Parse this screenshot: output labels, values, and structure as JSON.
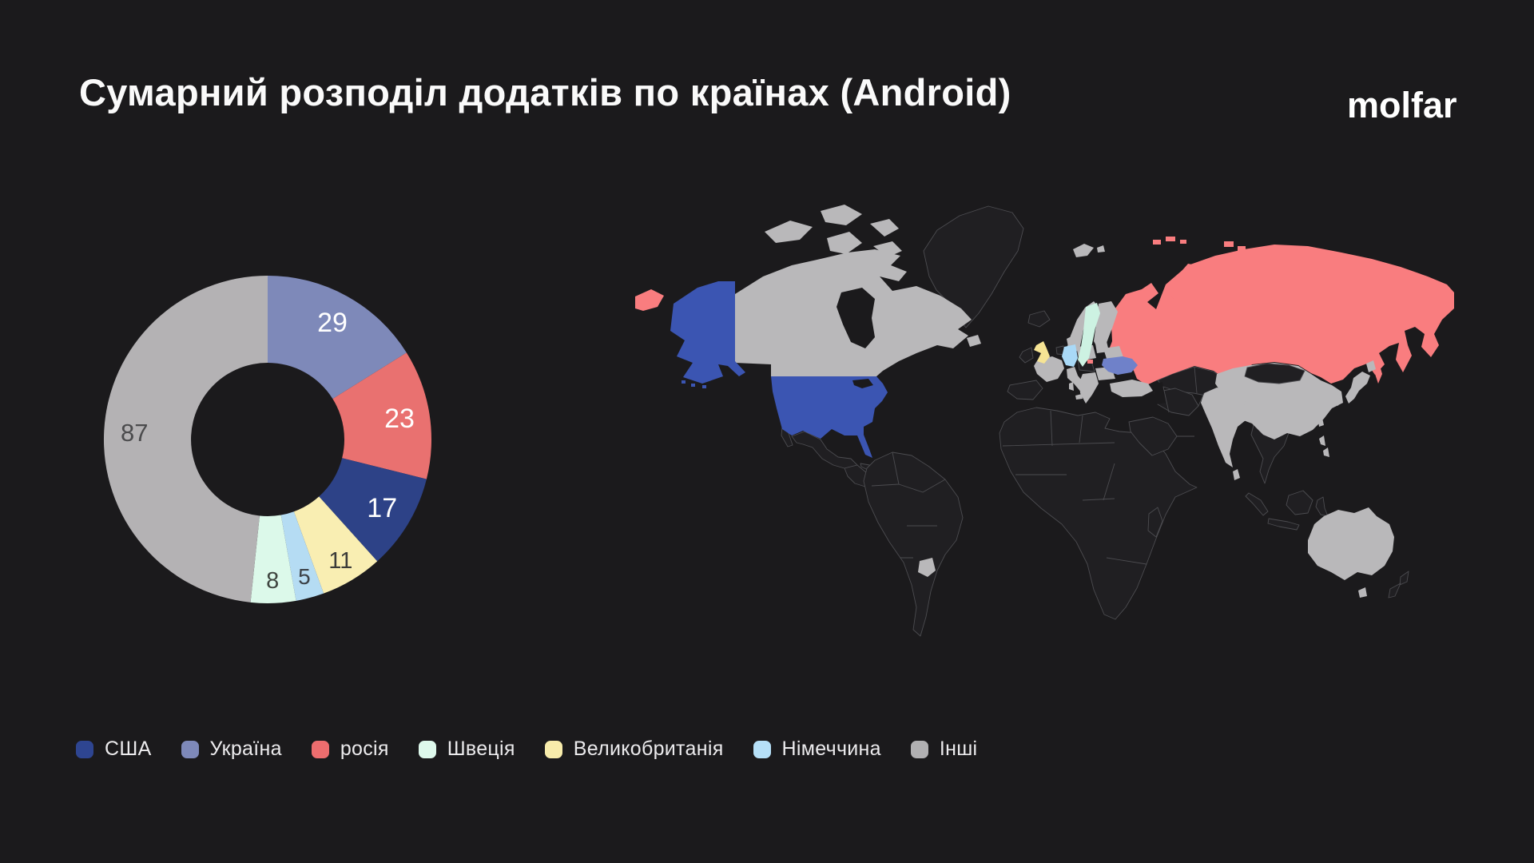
{
  "title": "Сумарний розподіл додатків по країнах (Android)",
  "logo_text": "molfar",
  "colors": {
    "background": "#1b1a1c",
    "title_text": "#fafafa"
  },
  "chart_data": {
    "type": "pie",
    "variant": "donut",
    "title": "Сумарний розподіл додатків по країнах (Android)",
    "total": 180,
    "direction": "clockwise",
    "start_angle_deg": 0,
    "inner_radius_ratio": 0.47,
    "categories": [
      "Україна",
      "росія",
      "США",
      "Великобританія",
      "Німеччина",
      "Швеція",
      "Інші"
    ],
    "values": [
      29,
      23,
      17,
      11,
      5,
      8,
      87
    ],
    "segments": [
      {
        "label": "Україна",
        "value": 29,
        "color": "#7e89b9",
        "label_color": "#ffffff"
      },
      {
        "label": "росія",
        "value": 23,
        "color": "#e97170",
        "label_color": "#ffffff"
      },
      {
        "label": "США",
        "value": 17,
        "color": "#2d4287",
        "label_color": "#ffffff"
      },
      {
        "label": "Великобританія",
        "value": 11,
        "color": "#f9eeb2",
        "label_color": "#3b3b39"
      },
      {
        "label": "Німеччина",
        "value": 5,
        "color": "#b5dcf3",
        "label_color": "#3c4248"
      },
      {
        "label": "Швеція",
        "value": 8,
        "color": "#dcf9ea",
        "label_color": "#3f4540"
      },
      {
        "label": "Інші",
        "value": 87,
        "color": "#b4b2b4",
        "label_color": "#4b4b4d"
      }
    ]
  },
  "legend": {
    "items": [
      {
        "label": "США",
        "color": "#2e4591"
      },
      {
        "label": "Україна",
        "color": "#7e89b9"
      },
      {
        "label": "росія",
        "color": "#ee6d6e"
      },
      {
        "label": "Швеція",
        "color": "#def9ec"
      },
      {
        "label": "Великобританія",
        "color": "#f8ecab"
      },
      {
        "label": "Німеччина",
        "color": "#b6e0f8"
      },
      {
        "label": "Інші",
        "color": "#b1b0b2"
      }
    ]
  },
  "map": {
    "type": "choropleth",
    "highlighted": [
      {
        "country": "США",
        "color": "#3b55b2"
      },
      {
        "country": "росія",
        "color": "#f97d7f"
      },
      {
        "country": "Україна",
        "color": "#6f81c9"
      },
      {
        "country": "Швеція",
        "color": "#cdf2e2"
      },
      {
        "country": "Великобританія",
        "color": "#f6e494"
      },
      {
        "country": "Німеччина",
        "color": "#a9d9f7"
      }
    ],
    "other_countries_color": "#b9b8ba",
    "no_data_fill": "#201f22",
    "fills": {
      "usa": "#3b55b2",
      "russia": "#f97d7f",
      "ukraine": "#6f81c9",
      "sweden": "#cdf2e2",
      "uk": "#f6e494",
      "germany": "#a9d9f7",
      "other": "#b9b8ba",
      "land": "#201f22",
      "water": "#1b1a1c",
      "border": "#4c4c50"
    }
  }
}
